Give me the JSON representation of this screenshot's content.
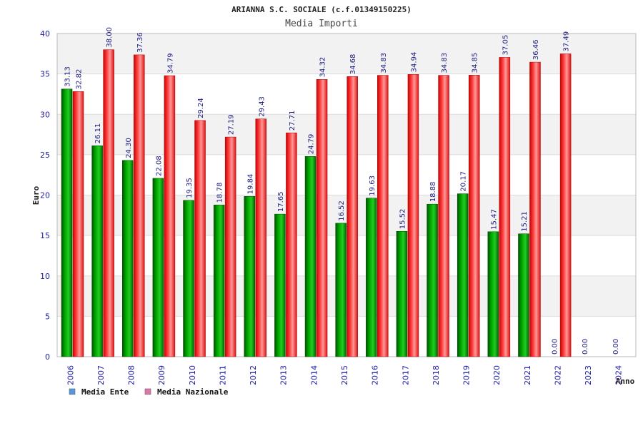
{
  "chart_data": {
    "type": "bar",
    "title": "ARIANNA S.C. SOCIALE (c.f.01349150225)",
    "subtitle": "Media Importi",
    "xlabel": "Anno",
    "ylabel": "Euro",
    "ylim": [
      0,
      40
    ],
    "yticks": [
      0,
      5,
      10,
      15,
      20,
      25,
      30,
      35,
      40
    ],
    "categories": [
      "2006",
      "2007",
      "2008",
      "2009",
      "2010",
      "2011",
      "2012",
      "2013",
      "2014",
      "2015",
      "2016",
      "2017",
      "2018",
      "2019",
      "2020",
      "2021",
      "2022",
      "2023",
      "2024"
    ],
    "series": [
      {
        "name": "Media Ente",
        "color": "#009900",
        "values": [
          33.13,
          26.11,
          24.3,
          22.08,
          19.35,
          18.78,
          19.84,
          17.65,
          24.79,
          16.52,
          19.63,
          15.52,
          18.88,
          20.17,
          15.47,
          15.21,
          0.0,
          0.0,
          0.0
        ],
        "labels": [
          "33.13",
          "26.11",
          "24.30",
          "22.08",
          "19.35",
          "18.78",
          "19.84",
          "17.65",
          "24.79",
          "16.52",
          "19.63",
          "15.52",
          "18.88",
          "20.17",
          "15.47",
          "15.21",
          "0.00",
          "0.00",
          "0.00"
        ]
      },
      {
        "name": "Media Nazionale",
        "color": "#ee1111",
        "values": [
          32.82,
          38.0,
          37.36,
          34.79,
          29.24,
          27.19,
          29.43,
          27.71,
          34.32,
          34.68,
          34.83,
          34.94,
          34.83,
          34.85,
          37.05,
          36.46,
          37.49,
          null,
          null
        ],
        "labels": [
          "32.82",
          "38.00",
          "37.36",
          "34.79",
          "29.24",
          "27.19",
          "29.43",
          "27.71",
          "34.32",
          "34.68",
          "34.83",
          "34.94",
          "34.83",
          "34.85",
          "37.05",
          "36.46",
          "37.49",
          "",
          ""
        ]
      }
    ],
    "legend": [
      {
        "label": "Media Ente",
        "color": "#5599dd"
      },
      {
        "label": "Media Nazionale",
        "color": "#dd77aa"
      }
    ],
    "grid": true,
    "legend_position": "bottom-left"
  }
}
